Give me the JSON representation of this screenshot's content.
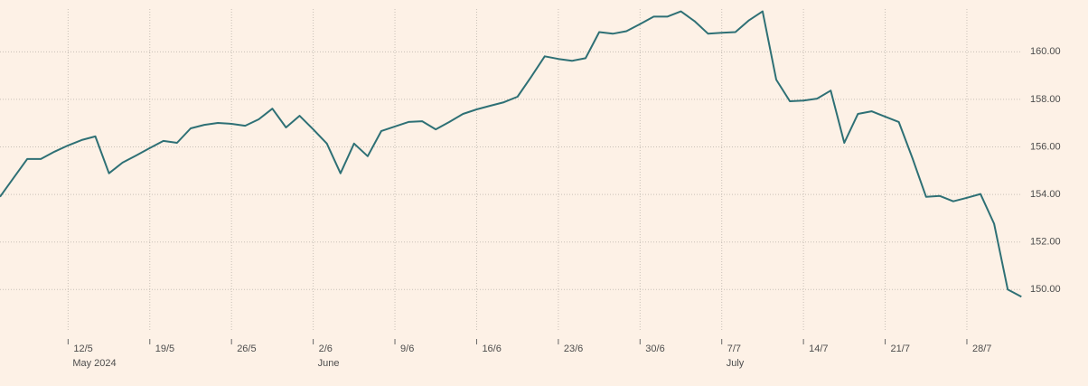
{
  "chart_data": {
    "type": "line",
    "categories": [
      null,
      null,
      null,
      null,
      null,
      "12/5",
      null,
      null,
      null,
      null,
      null,
      "19/5",
      null,
      null,
      null,
      null,
      null,
      "26/5",
      null,
      null,
      null,
      null,
      null,
      "2/6",
      null,
      null,
      null,
      null,
      null,
      "9/6",
      null,
      null,
      null,
      null,
      null,
      "16/6",
      null,
      null,
      null,
      null,
      null,
      "23/6",
      null,
      null,
      null,
      null,
      null,
      "30/6",
      null,
      null,
      null,
      null,
      null,
      "7/7",
      null,
      null,
      null,
      null,
      null,
      "14/7",
      null,
      null,
      null,
      null,
      null,
      "21/7",
      null,
      null,
      null,
      null,
      null,
      "28/7",
      null,
      null,
      null,
      null
    ],
    "category_sublabels": [
      null,
      null,
      null,
      null,
      null,
      "May 2024",
      null,
      null,
      null,
      null,
      null,
      null,
      null,
      null,
      null,
      null,
      null,
      null,
      null,
      null,
      null,
      null,
      null,
      "June",
      null,
      null,
      null,
      null,
      null,
      null,
      null,
      null,
      null,
      null,
      null,
      null,
      null,
      null,
      null,
      null,
      null,
      null,
      null,
      null,
      null,
      null,
      null,
      null,
      null,
      null,
      null,
      null,
      null,
      "July",
      null,
      null,
      null,
      null,
      null,
      null,
      null,
      null,
      null,
      null,
      null,
      null,
      null,
      null,
      null,
      null,
      null,
      null,
      null,
      null,
      null,
      null
    ],
    "values": [
      153.9,
      154.7,
      155.49,
      155.49,
      155.8,
      156.06,
      156.29,
      156.44,
      154.89,
      155.34,
      155.64,
      155.95,
      156.25,
      156.17,
      156.78,
      156.93,
      157.01,
      156.97,
      156.89,
      157.16,
      157.61,
      156.82,
      157.31,
      156.74,
      156.14,
      154.89,
      156.14,
      155.61,
      156.67,
      156.86,
      157.05,
      157.08,
      156.74,
      157.05,
      157.39,
      157.58,
      157.73,
      157.88,
      158.11,
      158.94,
      159.81,
      159.7,
      159.62,
      159.73,
      160.83,
      160.76,
      160.87,
      161.17,
      161.48,
      161.48,
      161.7,
      161.29,
      160.76,
      160.8,
      160.83,
      161.33,
      161.7,
      158.83,
      157.92,
      157.95,
      158.03,
      158.37,
      156.17,
      157.39,
      157.5,
      157.27,
      157.05,
      155.53,
      153.9,
      153.94,
      153.71,
      153.86,
      154.02,
      152.77,
      150.0,
      149.7
    ],
    "color": "#2e7075",
    "ylim": [
      148.3,
      161.8
    ],
    "yticks": [
      {
        "value": 150,
        "label": "150.00"
      },
      {
        "value": 152,
        "label": "152.00"
      },
      {
        "value": 154,
        "label": "154.00"
      },
      {
        "value": 156,
        "label": "156.00"
      },
      {
        "value": 158,
        "label": "158.00"
      },
      {
        "value": 160,
        "label": "160.00"
      }
    ],
    "grid": true
  }
}
